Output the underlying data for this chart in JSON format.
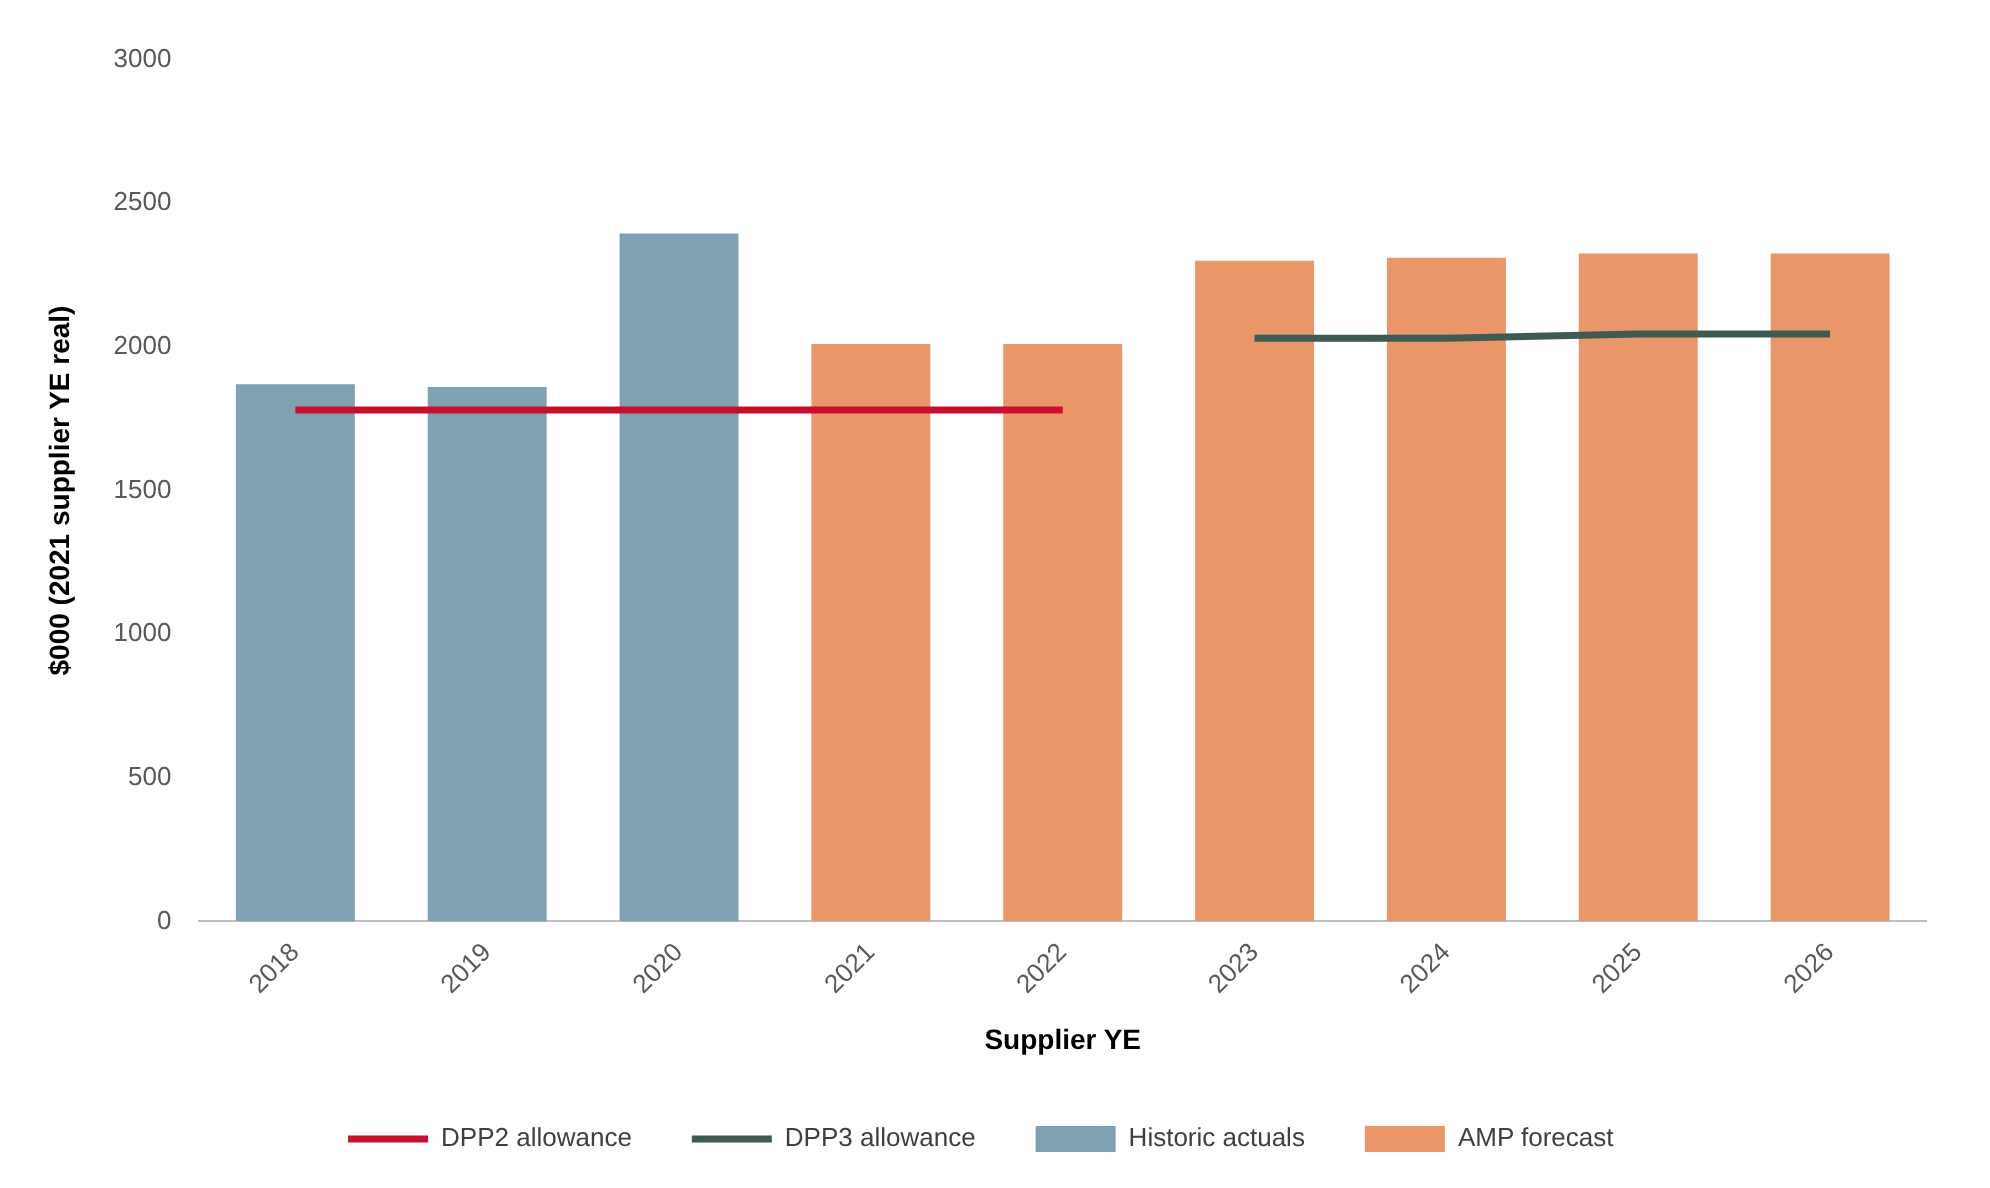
{
  "chart_data": {
    "type": "bar",
    "xlabel": "Supplier YE",
    "ylabel": "$000 (2021 supplier YE real)",
    "categories": [
      "2018",
      "2019",
      "2020",
      "2021",
      "2022",
      "2023",
      "2024",
      "2025",
      "2026"
    ],
    "series": [
      {
        "name": "Historic actuals",
        "color": "#7fa1b1",
        "values": [
          1870,
          1860,
          2395,
          null,
          null,
          null,
          null,
          null,
          null
        ]
      },
      {
        "name": "AMP forecast",
        "color": "#e99668",
        "values": [
          null,
          null,
          null,
          2010,
          2010,
          2300,
          2310,
          2325,
          2325
        ]
      },
      {
        "name": "DPP2 allowance",
        "type": "line",
        "color": "#c8102e",
        "values": [
          1780,
          1780,
          1780,
          1780,
          1780,
          null,
          null,
          null,
          null
        ]
      },
      {
        "name": "DPP3 allowance",
        "type": "line",
        "color": "#3e5a52",
        "values": [
          null,
          null,
          null,
          null,
          null,
          2030,
          2030,
          2045,
          2045
        ]
      }
    ],
    "ylim": [
      0,
      3000
    ],
    "yticks": [
      0,
      500,
      1000,
      1500,
      2000,
      2500,
      3000
    ],
    "grid": false,
    "legend": "bottom",
    "marker": "none",
    "line_style": "solid"
  }
}
